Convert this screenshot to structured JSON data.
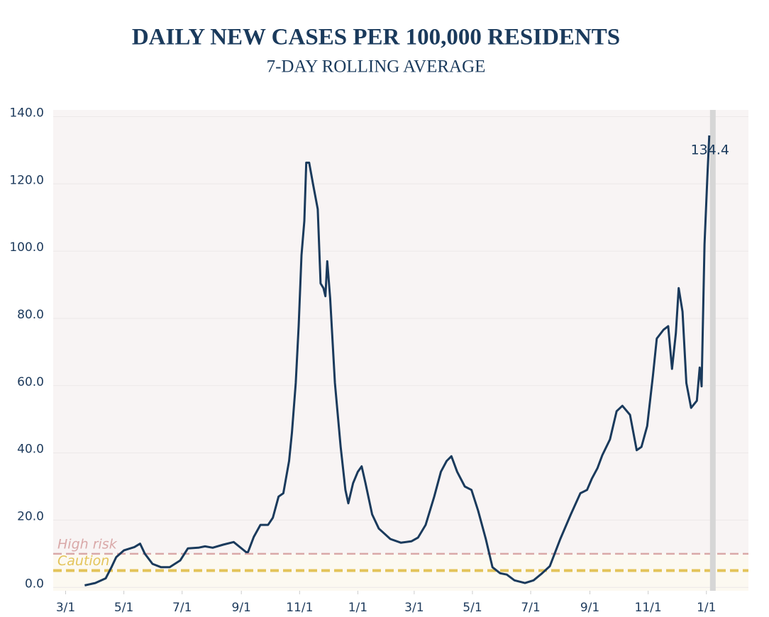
{
  "chart_data": {
    "type": "line",
    "title": "DAILY NEW CASES PER 100,000 RESIDENTS",
    "subtitle": "7-DAY ROLLING AVERAGE",
    "color": "#1a3a5c",
    "x": [
      20,
      31,
      42,
      48,
      53,
      61,
      72,
      78,
      83,
      91,
      100,
      109,
      120,
      128,
      139,
      146,
      154,
      165,
      176,
      189,
      191,
      197,
      204,
      212,
      217,
      223,
      228,
      234,
      237,
      241,
      244,
      247,
      250,
      252,
      255,
      259,
      264,
      267,
      270,
      272,
      274,
      277,
      282,
      288,
      293,
      296,
      301,
      306,
      310,
      314,
      321,
      328,
      340,
      351,
      362,
      369,
      377,
      386,
      393,
      399,
      404,
      410,
      418,
      425,
      432,
      440,
      447,
      455,
      462,
      470,
      481,
      490,
      499,
      507,
      518,
      529,
      539,
      546,
      551,
      557,
      562,
      570,
      577,
      583,
      591,
      598,
      603,
      609,
      615,
      619,
      626,
      631,
      635,
      639,
      642,
      646,
      650,
      655,
      661,
      664,
      666,
      669,
      672,
      674
    ],
    "values": [
      0.6,
      1.3,
      2.7,
      6,
      9,
      11,
      12,
      13,
      10,
      7,
      6,
      6,
      8,
      11.6,
      11.8,
      12.2,
      11.8,
      12.7,
      13.5,
      10.5,
      10.5,
      15,
      18.6,
      18.6,
      20.7,
      27,
      28,
      37.6,
      46,
      60.8,
      77.7,
      98.8,
      109,
      126.3,
      126.3,
      120,
      112.5,
      90.4,
      89,
      86.6,
      97,
      86,
      60.8,
      41.8,
      29,
      25,
      31,
      34.4,
      36,
      31,
      21.7,
      17.5,
      14.4,
      13.3,
      13.7,
      14.8,
      18.6,
      27,
      34.4,
      37.6,
      39,
      34.4,
      30,
      29,
      22.8,
      14.4,
      6,
      4.2,
      3.8,
      2.1,
      1.3,
      2.1,
      4.2,
      6.3,
      14.4,
      21.7,
      28,
      29,
      32.3,
      35.5,
      39.3,
      44,
      52.4,
      54,
      51.3,
      40.8,
      41.8,
      48,
      63,
      74,
      76.6,
      77.7,
      65,
      75.6,
      89,
      82,
      60.8,
      53.4,
      55.5,
      65.4,
      59.8,
      102,
      122,
      134.4
    ],
    "xlim": [
      -13,
      715
    ],
    "xticks": [
      {
        "value": 0,
        "label": "3/1"
      },
      {
        "value": 61,
        "label": "5/1"
      },
      {
        "value": 122,
        "label": "7/1"
      },
      {
        "value": 184,
        "label": "9/1"
      },
      {
        "value": 245,
        "label": "11/1"
      },
      {
        "value": 306,
        "label": "1/1"
      },
      {
        "value": 365,
        "label": "3/1"
      },
      {
        "value": 426,
        "label": "5/1"
      },
      {
        "value": 487,
        "label": "7/1"
      },
      {
        "value": 549,
        "label": "9/1"
      },
      {
        "value": 610,
        "label": "11/1"
      },
      {
        "value": 671,
        "label": "1/1"
      }
    ],
    "ylim": [
      -1,
      142
    ],
    "yticks": [
      {
        "value": 0,
        "label": "0.0"
      },
      {
        "value": 20,
        "label": "20.0"
      },
      {
        "value": 40,
        "label": "40.0"
      },
      {
        "value": 60,
        "label": "60.0"
      },
      {
        "value": 80,
        "label": "80.0"
      },
      {
        "value": 100,
        "label": "100.0"
      },
      {
        "value": 120,
        "label": "120.0"
      },
      {
        "value": 140,
        "label": "140.0"
      }
    ],
    "grid": true,
    "thresholds": [
      {
        "label": "High risk",
        "value": 10,
        "color": "#d9a8a8"
      },
      {
        "label": "Caution",
        "value": 5,
        "color": "#e3c45a"
      }
    ]
  }
}
